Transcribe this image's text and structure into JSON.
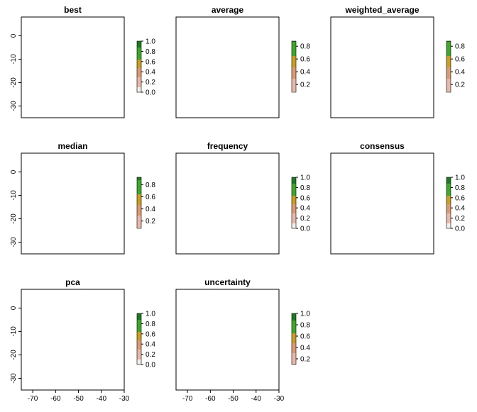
{
  "page_title": "",
  "colors": {
    "na_gray": "#efefef",
    "scale": [
      "#f5eee9",
      "#e8b8a8",
      "#dd9a73",
      "#c9a024",
      "#3fa82a",
      "#1f7a24"
    ]
  },
  "chart_data": [
    {
      "type": "heatmap",
      "title": "best",
      "xlim": [
        -75,
        -30
      ],
      "ylim": [
        -35,
        8
      ],
      "legend": {
        "ticks": [
          "1.0",
          "0.8",
          "0.6",
          "0.4",
          "0.2",
          "0.0"
        ],
        "tick_values": [
          1.0,
          0.8,
          0.6,
          0.4,
          0.2,
          0.0
        ],
        "range": [
          0,
          1
        ]
      },
      "pattern": "best"
    },
    {
      "type": "heatmap",
      "title": "average",
      "xlim": [
        -75,
        -30
      ],
      "ylim": [
        -35,
        8
      ],
      "legend": {
        "ticks": [
          "0.8",
          "0.6",
          "0.4",
          "0.2"
        ],
        "tick_values": [
          0.8,
          0.6,
          0.4,
          0.2
        ],
        "range": [
          0.08,
          0.88
        ]
      },
      "pattern": "average"
    },
    {
      "type": "heatmap",
      "title": "weighted_average",
      "xlim": [
        -75,
        -30
      ],
      "ylim": [
        -35,
        8
      ],
      "legend": {
        "ticks": [
          "0.8",
          "0.6",
          "0.4",
          "0.2"
        ],
        "tick_values": [
          0.8,
          0.6,
          0.4,
          0.2
        ],
        "range": [
          0.08,
          0.88
        ]
      },
      "pattern": "average"
    },
    {
      "type": "heatmap",
      "title": "median",
      "xlim": [
        -75,
        -30
      ],
      "ylim": [
        -35,
        8
      ],
      "legend": {
        "ticks": [
          "0.8",
          "0.6",
          "0.4",
          "0.2"
        ],
        "tick_values": [
          0.8,
          0.6,
          0.4,
          0.2
        ],
        "range": [
          0.08,
          0.92
        ]
      },
      "pattern": "average"
    },
    {
      "type": "heatmap",
      "title": "frequency",
      "xlim": [
        -75,
        -30
      ],
      "ylim": [
        -35,
        8
      ],
      "legend": {
        "ticks": [
          "1.0",
          "0.8",
          "0.6",
          "0.4",
          "0.2",
          "0.0"
        ],
        "tick_values": [
          1.0,
          0.8,
          0.6,
          0.4,
          0.2,
          0.0
        ],
        "range": [
          0,
          1
        ]
      },
      "pattern": "frequency"
    },
    {
      "type": "heatmap",
      "title": "consensus",
      "xlim": [
        -75,
        -30
      ],
      "ylim": [
        -35,
        8
      ],
      "legend": {
        "ticks": [
          "1.0",
          "0.8",
          "0.6",
          "0.4",
          "0.2",
          "0.0"
        ],
        "tick_values": [
          1.0,
          0.8,
          0.6,
          0.4,
          0.2,
          0.0
        ],
        "range": [
          0,
          1
        ]
      },
      "pattern": "consensus"
    },
    {
      "type": "heatmap",
      "title": "pca",
      "xlim": [
        -75,
        -30
      ],
      "ylim": [
        -35,
        8
      ],
      "legend": {
        "ticks": [
          "1.0",
          "0.8",
          "0.6",
          "0.4",
          "0.2",
          "0.0"
        ],
        "tick_values": [
          1.0,
          0.8,
          0.6,
          0.4,
          0.2,
          0.0
        ],
        "range": [
          0,
          1
        ]
      },
      "pattern": "average"
    },
    {
      "type": "heatmap",
      "title": "uncertainty",
      "xlim": [
        -75,
        -30
      ],
      "ylim": [
        -35,
        8
      ],
      "legend": {
        "ticks": [
          "1.0",
          "0.8",
          "0.6",
          "0.4",
          "0.2"
        ],
        "tick_values": [
          1.0,
          0.8,
          0.6,
          0.4,
          0.2
        ],
        "range": [
          0.1,
          1.0
        ]
      },
      "pattern": "uncertainty"
    }
  ],
  "axes": {
    "x_ticks": [
      "-70",
      "-60",
      "-50",
      "-40",
      "-30"
    ],
    "x_values": [
      -70,
      -60,
      -50,
      -40,
      -30
    ],
    "y_ticks": [
      "0",
      "-10",
      "-20",
      "-30"
    ],
    "y_values": [
      0,
      -10,
      -20,
      -30
    ]
  }
}
